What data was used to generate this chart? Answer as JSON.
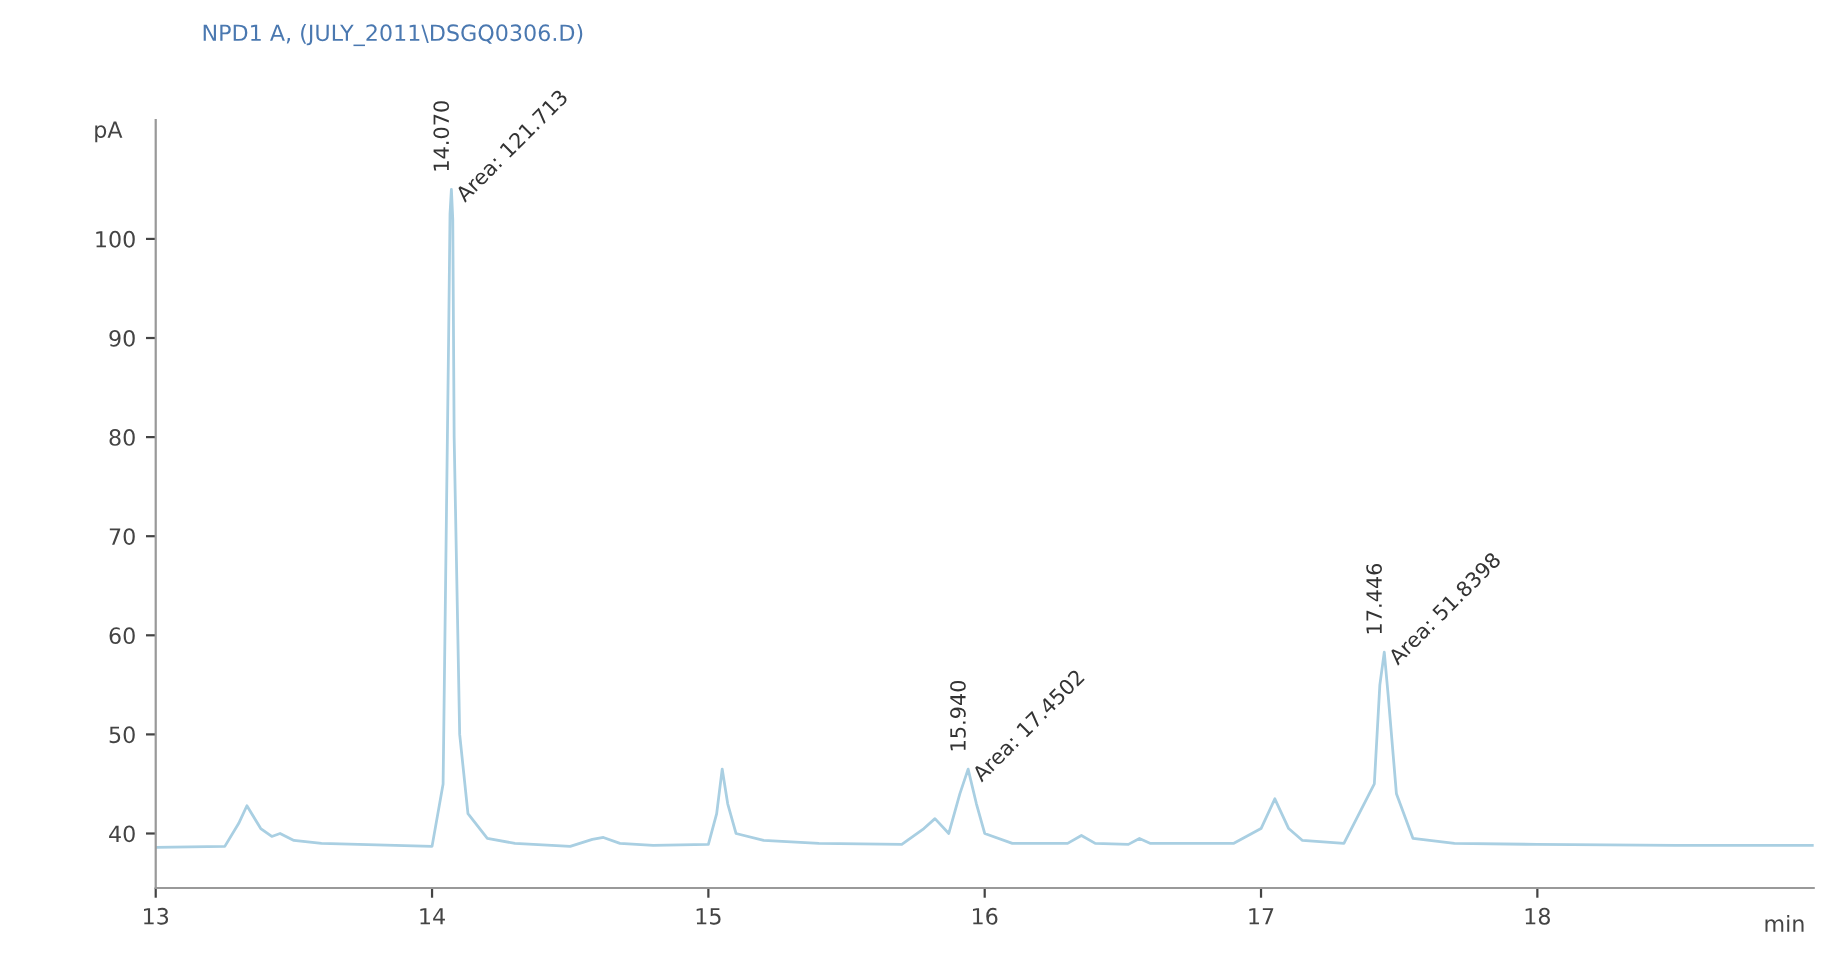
{
  "chart_data": {
    "type": "line",
    "title": "NPD1 A, (JULY_2011\\DSGQ0306.D)",
    "xlabel": "min",
    "ylabel": "pA",
    "xlim": [
      13,
      19
    ],
    "ylim": [
      34.5,
      112
    ],
    "xticks": [
      13,
      14,
      15,
      16,
      17,
      18
    ],
    "yticks": [
      40,
      50,
      60,
      70,
      80,
      90,
      100
    ],
    "grid": false,
    "marker": "none",
    "line_style": "solid",
    "series": [
      {
        "color": "#a9cfe2",
        "x": [
          13.0,
          13.25,
          13.3,
          13.33,
          13.38,
          13.42,
          13.45,
          13.5,
          13.6,
          14.0,
          14.04,
          14.06,
          14.065,
          14.07,
          14.075,
          14.08,
          14.1,
          14.13,
          14.2,
          14.3,
          14.5,
          14.58,
          14.62,
          14.68,
          14.8,
          15.0,
          15.03,
          15.05,
          15.07,
          15.1,
          15.2,
          15.4,
          15.7,
          15.78,
          15.82,
          15.87,
          15.91,
          15.94,
          15.97,
          16.0,
          16.1,
          16.3,
          16.35,
          16.4,
          16.52,
          16.56,
          16.6,
          16.9,
          17.0,
          17.05,
          17.1,
          17.15,
          17.3,
          17.41,
          17.43,
          17.446,
          17.46,
          17.49,
          17.55,
          17.7,
          18.0,
          18.5,
          19.0
        ],
        "values": [
          38.6,
          38.7,
          41.0,
          42.8,
          40.5,
          39.7,
          40.0,
          39.3,
          39.0,
          38.7,
          45.0,
          90.0,
          102.5,
          105.0,
          102.0,
          80.0,
          50.0,
          42.0,
          39.5,
          39.0,
          38.7,
          39.4,
          39.6,
          39.0,
          38.8,
          38.9,
          42.0,
          46.5,
          43.0,
          40.0,
          39.3,
          39.0,
          38.9,
          40.5,
          41.5,
          40.0,
          44.0,
          46.5,
          43.0,
          40.0,
          39.0,
          39.0,
          39.8,
          39.0,
          38.9,
          39.5,
          39.0,
          39.0,
          40.5,
          43.5,
          40.5,
          39.3,
          39.0,
          45.0,
          55.0,
          58.3,
          54.0,
          44.0,
          39.5,
          39.0,
          38.9,
          38.8,
          38.8
        ]
      }
    ],
    "annotations": [
      {
        "text": "14.070",
        "x": 14.07,
        "y": 105.0
      },
      {
        "text": "Area: 121.713",
        "x": 14.07,
        "y": 105.0
      },
      {
        "text": "15.940",
        "x": 15.94,
        "y": 46.5
      },
      {
        "text": "Area: 17.4502",
        "x": 15.94,
        "y": 46.5
      },
      {
        "text": "17.446",
        "x": 17.446,
        "y": 58.3
      },
      {
        "text": "Area: 51.8398",
        "x": 17.446,
        "y": 58.3
      }
    ]
  }
}
